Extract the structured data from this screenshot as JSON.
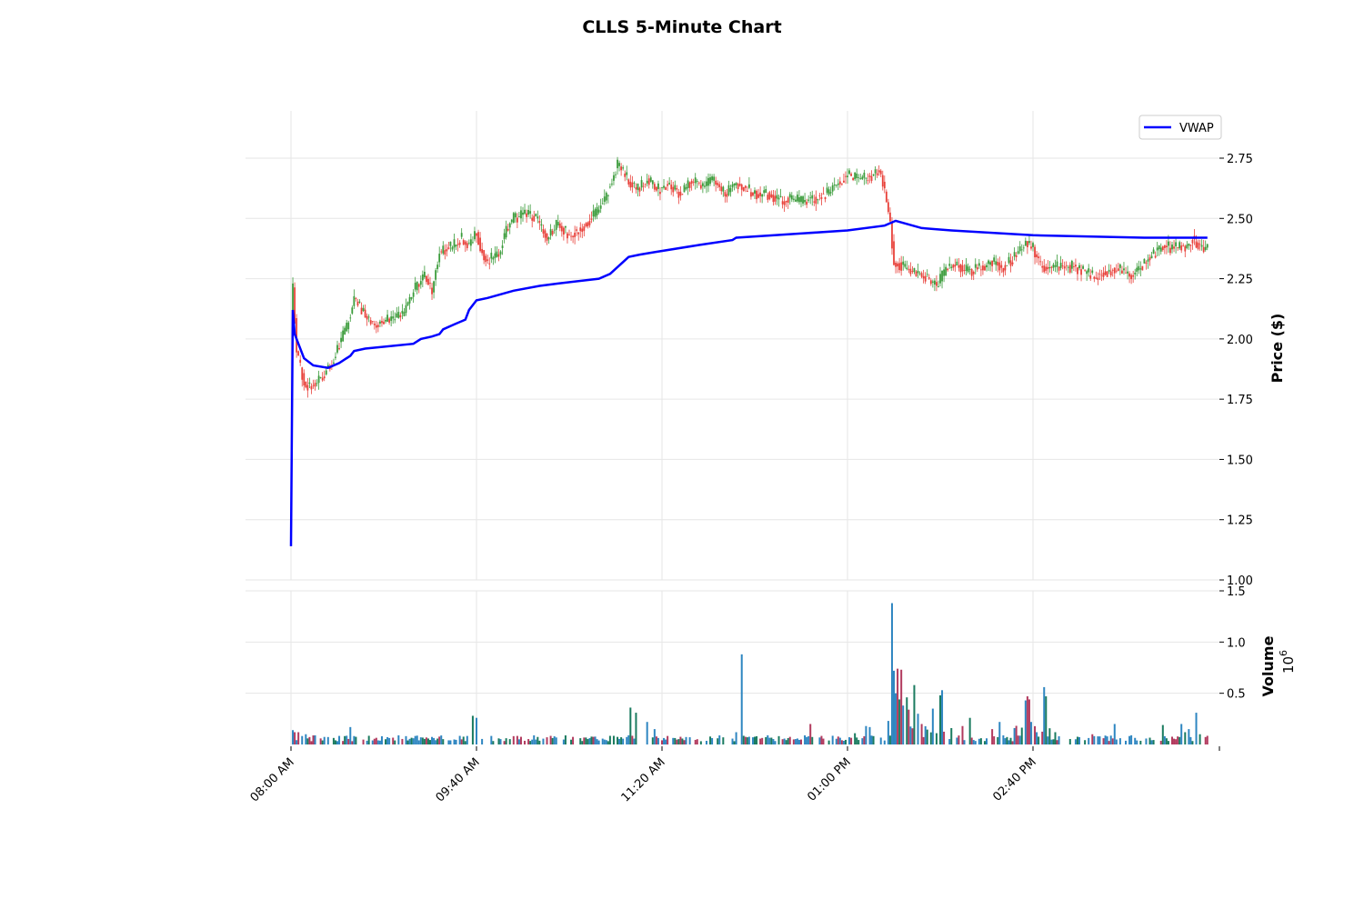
{
  "chart_data": {
    "type": "candlestick",
    "title": "CLLS 5-Minute Chart",
    "price_axis": {
      "label": "Price ($)",
      "ylim": [
        1.0,
        2.9
      ],
      "ticks": [
        "1.00",
        "1.25",
        "1.50",
        "1.75",
        "2.00",
        "2.25",
        "2.50",
        "2.75"
      ],
      "tick_values": [
        1.0,
        1.25,
        1.5,
        1.75,
        2.0,
        2.25,
        2.5,
        2.75
      ]
    },
    "volume_axis": {
      "label": "Volume",
      "exponent_label": "10",
      "exponent": "6",
      "ylim": [
        0,
        1.5
      ],
      "ticks": [
        "0.5",
        "1.0",
        "1.5"
      ],
      "tick_values": [
        0.5,
        1.0,
        1.5
      ]
    },
    "x_axis": {
      "ticks": [
        "08:00 AM",
        "09:40 AM",
        "11:20 AM",
        "01:00 PM",
        "02:40 PM"
      ],
      "tick_minutes": [
        480,
        580,
        680,
        780,
        880
      ],
      "range_minutes": [
        480,
        990
      ]
    },
    "legend": {
      "entries": [
        "VWAP"
      ],
      "placement": "top-right"
    },
    "grid": true,
    "colors": {
      "up": "#3a9b3a",
      "down": "#e8413a",
      "vwap": "#0000ff",
      "volume_up": "#1a7b5f",
      "volume_down": "#b23a5e",
      "volume_neutral": "#2e86c1"
    },
    "price_anchors": [
      [
        480,
        2.08
      ],
      [
        481,
        2.22
      ],
      [
        483,
        1.95
      ],
      [
        487,
        1.82
      ],
      [
        491,
        1.8
      ],
      [
        496,
        1.84
      ],
      [
        502,
        1.9
      ],
      [
        506,
        1.98
      ],
      [
        510,
        2.05
      ],
      [
        514,
        2.17
      ],
      [
        520,
        2.1
      ],
      [
        526,
        2.06
      ],
      [
        532,
        2.08
      ],
      [
        540,
        2.1
      ],
      [
        546,
        2.2
      ],
      [
        552,
        2.26
      ],
      [
        556,
        2.2
      ],
      [
        560,
        2.36
      ],
      [
        566,
        2.38
      ],
      [
        572,
        2.42
      ],
      [
        576,
        2.38
      ],
      [
        580,
        2.45
      ],
      [
        582,
        2.38
      ],
      [
        586,
        2.32
      ],
      [
        592,
        2.36
      ],
      [
        596,
        2.45
      ],
      [
        600,
        2.5
      ],
      [
        606,
        2.52
      ],
      [
        612,
        2.5
      ],
      [
        618,
        2.42
      ],
      [
        624,
        2.48
      ],
      [
        630,
        2.43
      ],
      [
        636,
        2.46
      ],
      [
        642,
        2.5
      ],
      [
        648,
        2.56
      ],
      [
        652,
        2.64
      ],
      [
        656,
        2.72
      ],
      [
        660,
        2.68
      ],
      [
        666,
        2.62
      ],
      [
        672,
        2.66
      ],
      [
        678,
        2.62
      ],
      [
        684,
        2.64
      ],
      [
        690,
        2.6
      ],
      [
        696,
        2.66
      ],
      [
        702,
        2.63
      ],
      [
        708,
        2.66
      ],
      [
        714,
        2.6
      ],
      [
        720,
        2.64
      ],
      [
        726,
        2.62
      ],
      [
        732,
        2.6
      ],
      [
        738,
        2.6
      ],
      [
        744,
        2.58
      ],
      [
        750,
        2.58
      ],
      [
        756,
        2.57
      ],
      [
        762,
        2.58
      ],
      [
        768,
        2.6
      ],
      [
        774,
        2.64
      ],
      [
        780,
        2.68
      ],
      [
        786,
        2.66
      ],
      [
        792,
        2.67
      ],
      [
        797,
        2.7
      ],
      [
        800,
        2.62
      ],
      [
        803,
        2.48
      ],
      [
        805,
        2.32
      ],
      [
        810,
        2.3
      ],
      [
        816,
        2.28
      ],
      [
        822,
        2.26
      ],
      [
        828,
        2.22
      ],
      [
        834,
        2.3
      ],
      [
        840,
        2.3
      ],
      [
        846,
        2.28
      ],
      [
        852,
        2.3
      ],
      [
        858,
        2.32
      ],
      [
        864,
        2.3
      ],
      [
        870,
        2.34
      ],
      [
        876,
        2.4
      ],
      [
        880,
        2.38
      ],
      [
        884,
        2.3
      ],
      [
        890,
        2.3
      ],
      [
        896,
        2.3
      ],
      [
        902,
        2.3
      ],
      [
        908,
        2.28
      ],
      [
        914,
        2.26
      ],
      [
        920,
        2.28
      ],
      [
        926,
        2.29
      ],
      [
        932,
        2.26
      ],
      [
        938,
        2.3
      ],
      [
        944,
        2.35
      ],
      [
        950,
        2.38
      ],
      [
        956,
        2.38
      ],
      [
        962,
        2.38
      ],
      [
        966,
        2.42
      ],
      [
        970,
        2.38
      ],
      [
        974,
        2.37
      ]
    ],
    "vwap_anchors": [
      [
        480,
        1.14
      ],
      [
        481,
        2.12
      ],
      [
        482,
        2.02
      ],
      [
        487,
        1.92
      ],
      [
        492,
        1.89
      ],
      [
        500,
        1.88
      ],
      [
        506,
        1.9
      ],
      [
        512,
        1.93
      ],
      [
        514,
        1.95
      ],
      [
        520,
        1.96
      ],
      [
        546,
        1.98
      ],
      [
        550,
        2.0
      ],
      [
        556,
        2.01
      ],
      [
        560,
        2.02
      ],
      [
        562,
        2.04
      ],
      [
        568,
        2.06
      ],
      [
        574,
        2.08
      ],
      [
        576,
        2.12
      ],
      [
        580,
        2.16
      ],
      [
        586,
        2.17
      ],
      [
        600,
        2.2
      ],
      [
        614,
        2.22
      ],
      [
        624,
        2.23
      ],
      [
        646,
        2.25
      ],
      [
        652,
        2.27
      ],
      [
        662,
        2.34
      ],
      [
        668,
        2.35
      ],
      [
        676,
        2.36
      ],
      [
        700,
        2.39
      ],
      [
        718,
        2.41
      ],
      [
        720,
        2.42
      ],
      [
        780,
        2.45
      ],
      [
        800,
        2.47
      ],
      [
        806,
        2.49
      ],
      [
        820,
        2.46
      ],
      [
        836,
        2.45
      ],
      [
        880,
        2.43
      ],
      [
        940,
        2.42
      ],
      [
        970,
        2.42
      ],
      [
        974,
        2.42
      ]
    ],
    "volume_spikes": [
      [
        481,
        0.14
      ],
      [
        482,
        0.12
      ],
      [
        484,
        0.12
      ],
      [
        488,
        0.1
      ],
      [
        512,
        0.17
      ],
      [
        578,
        0.28
      ],
      [
        580,
        0.26
      ],
      [
        663,
        0.36
      ],
      [
        666,
        0.31
      ],
      [
        672,
        0.22
      ],
      [
        676,
        0.15
      ],
      [
        720,
        0.12
      ],
      [
        723,
        0.88
      ],
      [
        760,
        0.2
      ],
      [
        784,
        0.11
      ],
      [
        790,
        0.18
      ],
      [
        792,
        0.17
      ],
      [
        802,
        0.23
      ],
      [
        804,
        1.38
      ],
      [
        805,
        0.72
      ],
      [
        806,
        0.5
      ],
      [
        807,
        0.74
      ],
      [
        808,
        0.44
      ],
      [
        809,
        0.73
      ],
      [
        810,
        0.38
      ],
      [
        812,
        0.46
      ],
      [
        813,
        0.34
      ],
      [
        816,
        0.58
      ],
      [
        818,
        0.3
      ],
      [
        820,
        0.2
      ],
      [
        826,
        0.35
      ],
      [
        830,
        0.48
      ],
      [
        831,
        0.53
      ],
      [
        836,
        0.16
      ],
      [
        842,
        0.18
      ],
      [
        846,
        0.26
      ],
      [
        858,
        0.15
      ],
      [
        862,
        0.22
      ],
      [
        870,
        0.16
      ],
      [
        876,
        0.43
      ],
      [
        877,
        0.47
      ],
      [
        878,
        0.44
      ],
      [
        879,
        0.22
      ],
      [
        882,
        0.12
      ],
      [
        886,
        0.56
      ],
      [
        887,
        0.47
      ],
      [
        892,
        0.12
      ],
      [
        912,
        0.1
      ],
      [
        924,
        0.2
      ],
      [
        950,
        0.19
      ],
      [
        960,
        0.2
      ],
      [
        962,
        0.12
      ],
      [
        964,
        0.15
      ],
      [
        968,
        0.31
      ],
      [
        970,
        0.1
      ]
    ]
  }
}
